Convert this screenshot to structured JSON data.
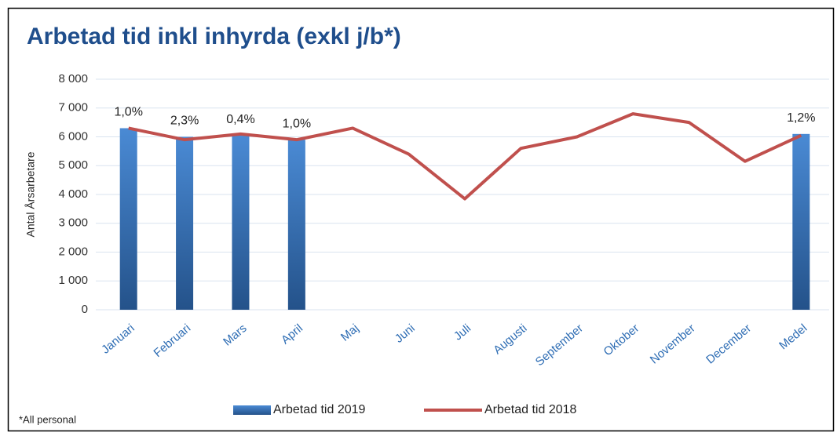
{
  "chart_data": {
    "type": "bar+line",
    "title": "Arbetad tid inkl inhyrda (exkl j/b*)",
    "y_label": "Antal Årsarbetare",
    "footnote": "*All personal",
    "categories": [
      "Januari",
      "Februari",
      "Mars",
      "April",
      "Maj",
      "Juni",
      "Juli",
      "Augusti",
      "September",
      "Oktober",
      "November",
      "December",
      "Medel"
    ],
    "series": [
      {
        "name": "Arbetad tid 2019",
        "type": "bar",
        "color": "#4a8ad4",
        "values": [
          6300,
          6000,
          6050,
          5900,
          null,
          null,
          null,
          null,
          null,
          null,
          null,
          null,
          6100
        ],
        "annotations": [
          "1,0%",
          "2,3%",
          "0,4%",
          "1,0%",
          null,
          null,
          null,
          null,
          null,
          null,
          null,
          null,
          "1,2%"
        ]
      },
      {
        "name": "Arbetad tid 2018",
        "type": "line",
        "color": "#c0504d",
        "values": [
          6300,
          5900,
          6100,
          5900,
          6300,
          5400,
          3850,
          5600,
          6000,
          6800,
          6500,
          5150,
          6050
        ]
      }
    ],
    "ylim": [
      0,
      8000
    ],
    "yticks": [
      0,
      {
        "value": 1000,
        "label": "1 000"
      },
      {
        "value": 2000,
        "label": "2 000"
      },
      {
        "value": 3000,
        "label": "3 000"
      },
      {
        "value": 4000,
        "label": "4 000"
      },
      {
        "value": 5000,
        "label": "5 000"
      },
      {
        "value": 6000,
        "label": "6 000"
      },
      {
        "value": 7000,
        "label": "7 000"
      },
      {
        "value": 8000,
        "label": "8 000"
      }
    ],
    "grid": true
  }
}
